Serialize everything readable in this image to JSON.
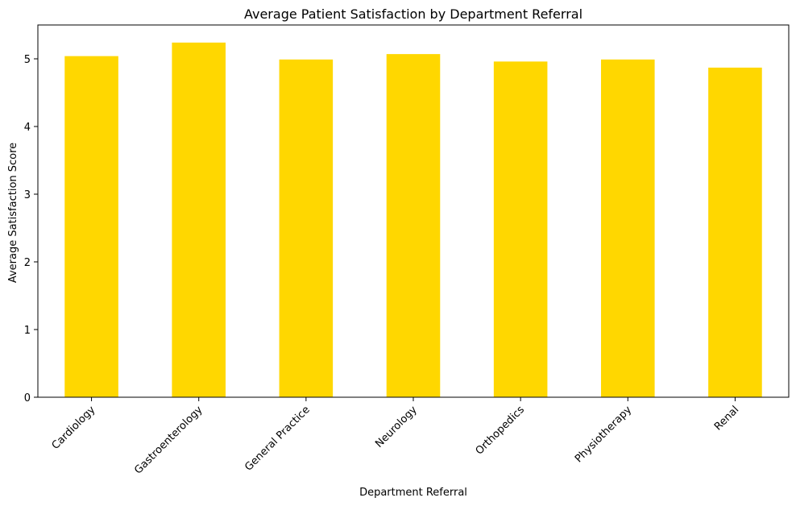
{
  "chart_data": {
    "type": "bar",
    "title": "Average Patient Satisfaction by Department Referral",
    "xlabel": "Department Referral",
    "ylabel": "Average Satisfaction Score",
    "categories": [
      "Cardiology",
      "Gastroenterology",
      "General Practice",
      "Neurology",
      "Orthopedics",
      "Physiotherapy",
      "Renal"
    ],
    "values": [
      5.04,
      5.24,
      4.99,
      5.07,
      4.96,
      4.99,
      4.87
    ],
    "ylim": [
      0,
      5.5
    ],
    "yticks": [
      "0",
      "1",
      "2",
      "3",
      "4",
      "5"
    ],
    "bar_color": "#FFD700",
    "grid": false,
    "legend": "none"
  }
}
